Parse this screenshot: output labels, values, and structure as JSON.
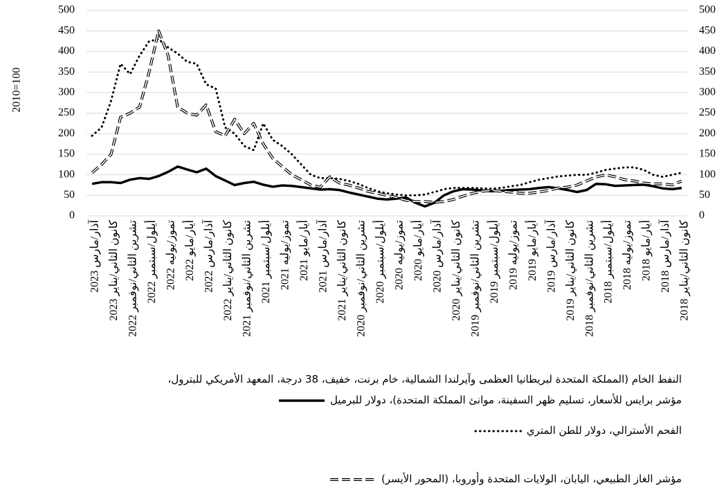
{
  "chart_data": {
    "type": "line",
    "ylabel": "2010=100",
    "categories": [
      "آذار/مارس 2023",
      null,
      "كانون الثاني/يناير 2023",
      null,
      "تشرين الثاني/نوفمبر 2022",
      null,
      "أيلول/سبتمبر 2022",
      null,
      "تموز/يوليه 2022",
      null,
      "أيار/مايو 2022",
      null,
      "آذار/مارس 2022",
      null,
      "كانون الثاني/يناير 2022",
      null,
      "تشرين الثاني/نوفمبر 2021",
      null,
      "أيلول/سبتمبر 2021",
      null,
      "تموز/يوليه 2021",
      null,
      "أيار/مايو 2021",
      null,
      "آذار/مارس 2021",
      null,
      "كانون الثاني/يناير 2021",
      null,
      "تشرين الثاني/نوفمبر 2020",
      null,
      "أيلول/سبتمبر 2020",
      null,
      "تموز/يوليه 2020",
      null,
      "أيار/مايو 2020",
      null,
      "آذار/مارس 2020",
      null,
      "كانون الثاني/يناير 2020",
      null,
      "تشرين الثاني/نوفمبر 2019",
      null,
      "أيلول/سبتمبر 2019",
      null,
      "تموز/يوليه 2019",
      null,
      "أيار/مايو 2019",
      null,
      "آذار/مارس 2019",
      null,
      "كانون الثاني/يناير 2019",
      null,
      "تشرين الثاني/نوفمبر 2018",
      null,
      "أيلول/سبتمبر 2018",
      null,
      "تموز/يوليه 2018",
      null,
      "أيار/مايو 2018",
      null,
      "آذار/مارس 2018",
      null,
      "كانون الثاني/يناير 2018"
    ],
    "series": [
      {
        "name": "النفط الخام (المملكة المتحدة لبريطانيا العظمى وآيرلندا الشمالية، خام برنت، خفيف، 38 درجة، المعهد الأمريكي للبترول، مؤشر برايس للأسعار، تسليم ظهر السفينة، موانئ المملكة المتحدة)، دولار للبرميل",
        "color": "#000000",
        "dash": "solid",
        "axis": "y2",
        "values": [
          78,
          82,
          82,
          80,
          88,
          92,
          90,
          97,
          107,
          120,
          113,
          106,
          115,
          97,
          86,
          75,
          80,
          83,
          76,
          71,
          74,
          73,
          70,
          67,
          64,
          65,
          63,
          57,
          52,
          47,
          42,
          40,
          42,
          45,
          32,
          23,
          32,
          50,
          60,
          65,
          64,
          62,
          60,
          61,
          63,
          64,
          65,
          68,
          70,
          67,
          63,
          58,
          63,
          78,
          77,
          73,
          74,
          75,
          76,
          72,
          67,
          65,
          68
        ]
      },
      {
        "name": "الفحم الأسترالي، دولار للطن المتري",
        "color": "#000000",
        "dash": "dotted",
        "axis": "y2",
        "values": [
          195,
          215,
          280,
          370,
          345,
          390,
          425,
          430,
          410,
          395,
          375,
          370,
          320,
          310,
          215,
          200,
          170,
          160,
          225,
          185,
          170,
          150,
          125,
          100,
          92,
          92,
          90,
          85,
          78,
          68,
          60,
          55,
          52,
          50,
          50,
          52,
          58,
          65,
          68,
          68,
          68,
          67,
          66,
          68,
          72,
          75,
          82,
          88,
          92,
          96,
          98,
          100,
          100,
          105,
          112,
          115,
          118,
          118,
          112,
          100,
          95,
          100,
          105
        ]
      },
      {
        "name": "مؤشر الغاز الطبيعي، اليابان، الولايات المتحدة وأوروبا، (المحور الأيسر)",
        "color": "#000000",
        "dash": "dashed",
        "axis": "y",
        "values": [
          105,
          125,
          150,
          240,
          250,
          265,
          350,
          450,
          390,
          265,
          250,
          245,
          270,
          205,
          195,
          235,
          200,
          225,
          175,
          140,
          120,
          100,
          88,
          75,
          70,
          95,
          80,
          75,
          68,
          60,
          55,
          50,
          45,
          38,
          35,
          35,
          33,
          35,
          40,
          48,
          55,
          60,
          62,
          60,
          58,
          55,
          55,
          58,
          62,
          68,
          70,
          75,
          85,
          95,
          100,
          95,
          88,
          85,
          80,
          78,
          78,
          75,
          85
        ]
      }
    ],
    "ylim": [
      0,
      500
    ],
    "yticks": [
      0,
      50,
      100,
      150,
      200,
      250,
      300,
      350,
      400,
      450,
      500
    ],
    "y2lim": [
      0,
      500
    ],
    "y2ticks": [
      0,
      50,
      100,
      150,
      200,
      250,
      300,
      350,
      400,
      450,
      500
    ],
    "legend": "bottom"
  }
}
